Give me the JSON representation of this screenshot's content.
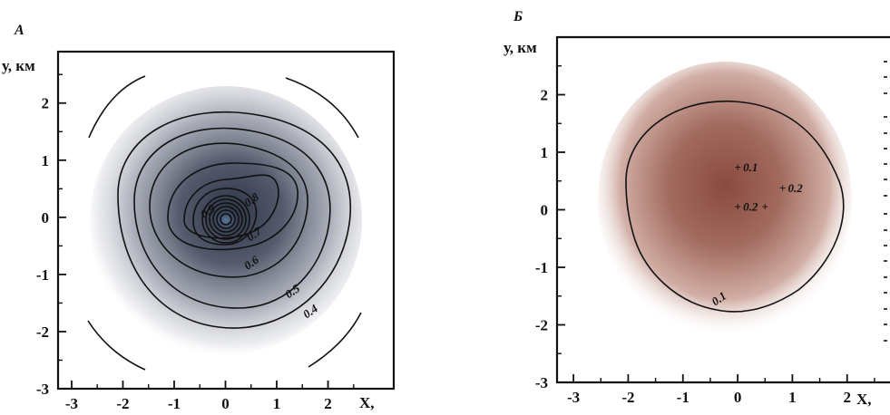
{
  "chart_data": [
    {
      "type": "heatmap",
      "panel_label": "А",
      "ylabel": "у, км",
      "xlabel": "X,",
      "xlim": [
        -3.3,
        3.3
      ],
      "ylim": [
        -3,
        2.9
      ],
      "x_ticks": [
        -3,
        -2,
        -1,
        0,
        1,
        2
      ],
      "x_tick_labels": [
        "-3",
        "-2",
        "-1",
        "0",
        "1",
        "2"
      ],
      "y_ticks": [
        -3,
        -2,
        -1,
        0,
        1,
        2
      ],
      "y_tick_labels": [
        "-3",
        "-2",
        "-1",
        "0",
        "1",
        "2"
      ],
      "colormap": {
        "low": "#ffffff",
        "high": "#2d3448",
        "center": "#4a6a88"
      },
      "grid": false,
      "contour_labels": [
        {
          "text": "0.9",
          "x": -0.3,
          "y": 0.05
        },
        {
          "text": "0.8",
          "x": 0.55,
          "y": 0.25
        },
        {
          "text": "0.7",
          "x": 0.6,
          "y": -0.35
        },
        {
          "text": "0.6",
          "x": 0.55,
          "y": -0.85
        },
        {
          "text": "0.5",
          "x": 1.35,
          "y": -1.35
        },
        {
          "text": "0.4",
          "x": 1.7,
          "y": -1.7
        }
      ],
      "contour_levels": [
        0.4,
        0.5,
        0.6,
        0.7,
        0.8,
        0.9
      ]
    },
    {
      "type": "heatmap",
      "panel_label": "Б",
      "ylabel": "у, км",
      "xlabel": "X,",
      "xlim": [
        -3.3,
        2.8
      ],
      "ylim": [
        -3,
        3
      ],
      "x_ticks": [
        -3,
        -2,
        -1,
        0,
        1,
        2
      ],
      "x_tick_labels": [
        "-3",
        "-2",
        "-1",
        "0",
        "1",
        "2"
      ],
      "y_ticks": [
        -3,
        -2,
        -1,
        0,
        1,
        2
      ],
      "y_tick_labels": [
        "-3",
        "-2",
        "-1",
        "0",
        "1",
        "2"
      ],
      "colormap": {
        "low": "#ffffff",
        "high": "#8a4a3e"
      },
      "grid": false,
      "contour_levels": [
        0.1
      ],
      "contour_labels": [
        {
          "text": "0.1",
          "x": -0.3,
          "y": -1.6
        }
      ],
      "point_markers": [
        {
          "label": "0.1",
          "x": 0.0,
          "y": 0.73
        },
        {
          "label": "0.2",
          "x": 0.82,
          "y": 0.37
        },
        {
          "label": "0.2",
          "x": 0.0,
          "y": 0.05
        },
        {
          "label": "",
          "x": 0.5,
          "y": 0.05
        }
      ]
    }
  ]
}
